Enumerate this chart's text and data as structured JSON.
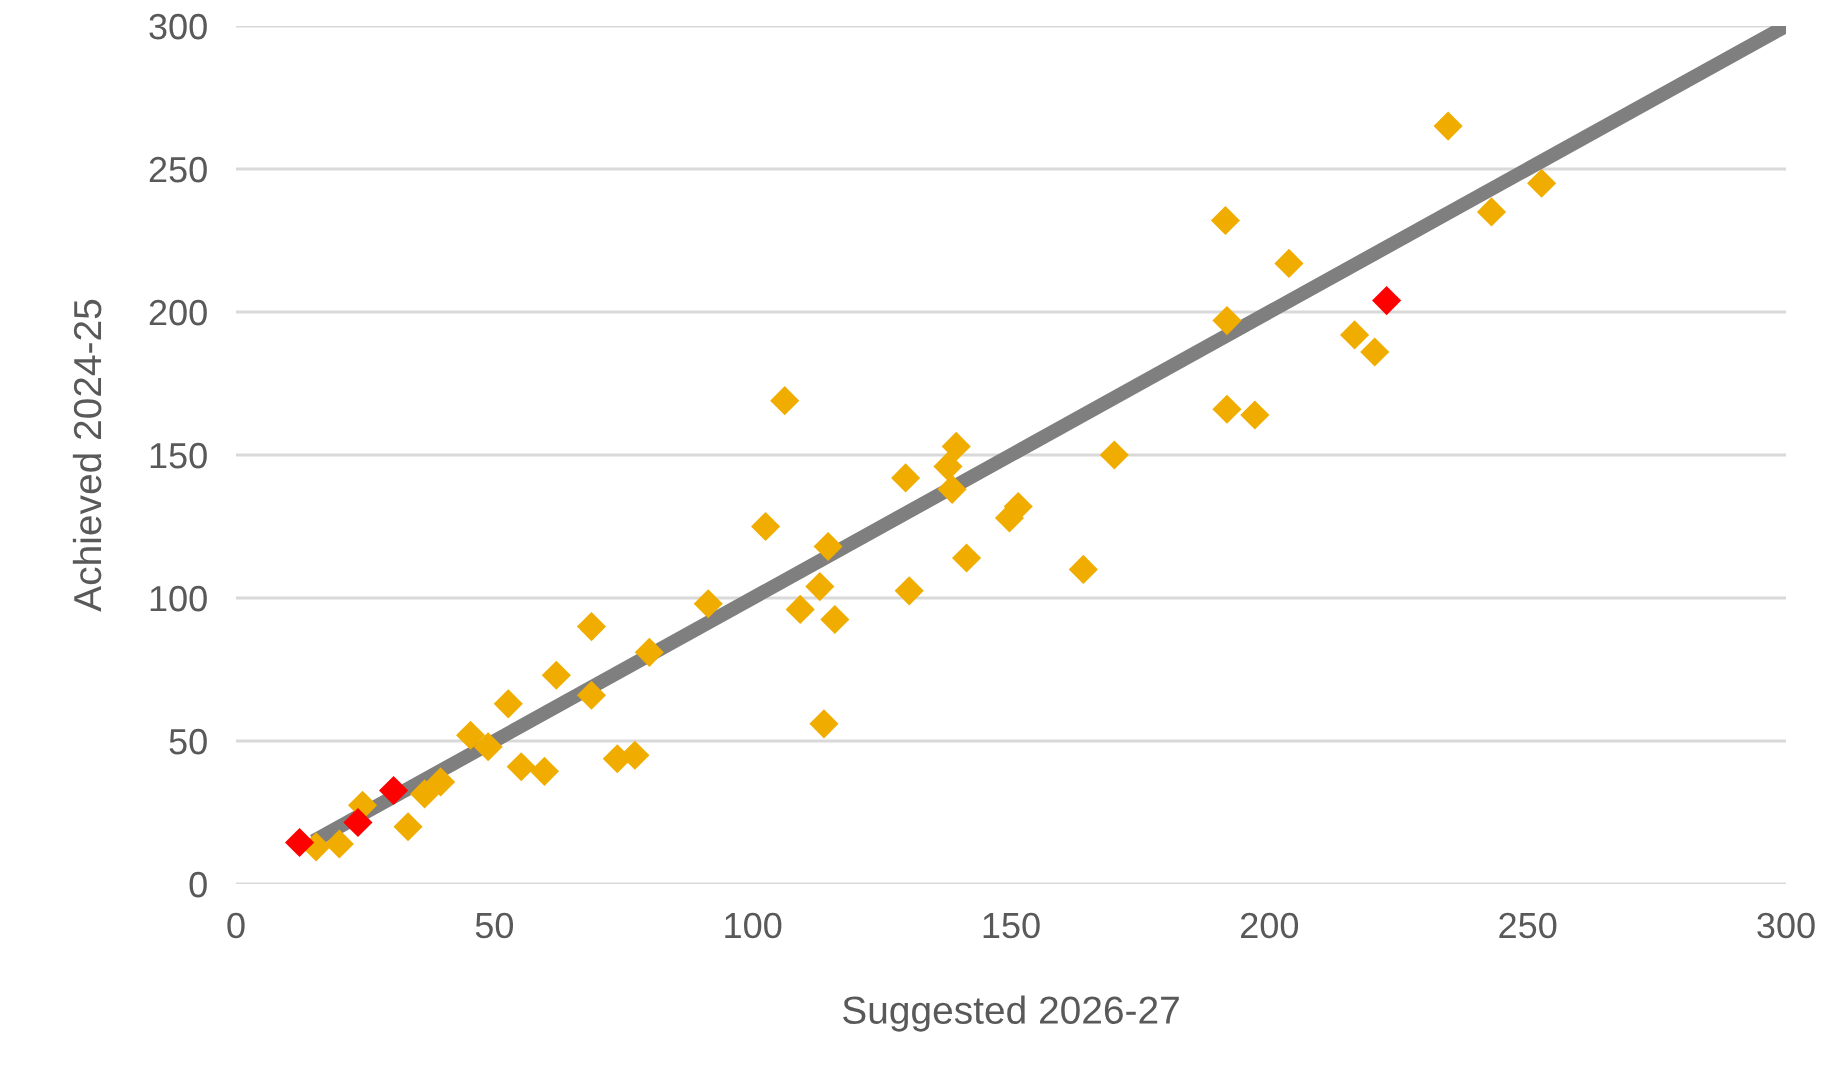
{
  "chart_data": {
    "type": "scatter",
    "xlabel": "Suggested 2026-27",
    "ylabel": "Achieved 2024-25",
    "xlim": [
      0,
      300
    ],
    "ylim": [
      0,
      300
    ],
    "xticks": [
      0,
      50,
      100,
      150,
      200,
      250,
      300
    ],
    "yticks": [
      0,
      50,
      100,
      150,
      200,
      250,
      300
    ],
    "grid": "y",
    "legend": false,
    "series": [
      {
        "type": "line",
        "color": "#7f7f7f",
        "marker": "none",
        "line_style": "solid",
        "x": [
          15,
          300
        ],
        "values": [
          15,
          300
        ]
      },
      {
        "color": "#f0ad00",
        "marker": "diamond",
        "x": [
          15.5,
          20,
          24.5,
          33.3,
          36.5,
          39.6,
          45.4,
          48.8,
          52.7,
          55.2,
          59.7,
          62,
          68.8,
          68.8,
          73.8,
          77.2,
          80,
          91.4,
          102.5,
          106.2,
          109.2,
          113,
          113.8,
          114.6,
          115.9,
          129.6,
          130.3,
          137.8,
          138.6,
          139.4,
          141.4,
          149.7,
          151.4,
          164,
          170,
          191.5,
          191.8,
          191.8,
          197.2,
          203.8,
          216.5,
          220.4,
          234.6,
          243,
          252.7
        ],
        "values": [
          13,
          14,
          27.5,
          20,
          31.5,
          35.7,
          52,
          48,
          63,
          41,
          39.4,
          73,
          90,
          66,
          43.8,
          45,
          81,
          98,
          125,
          169,
          96,
          104,
          56,
          118,
          92.5,
          142,
          102.5,
          146,
          138,
          153,
          114,
          128,
          132,
          110,
          150,
          232,
          197,
          166,
          164,
          217,
          192,
          186,
          265,
          235,
          245
        ]
      },
      {
        "color": "#ff0000",
        "marker": "diamond",
        "x": [
          12.3,
          23.6,
          30.5,
          222.7
        ],
        "values": [
          14.5,
          21.5,
          32.7,
          204
        ]
      }
    ]
  }
}
